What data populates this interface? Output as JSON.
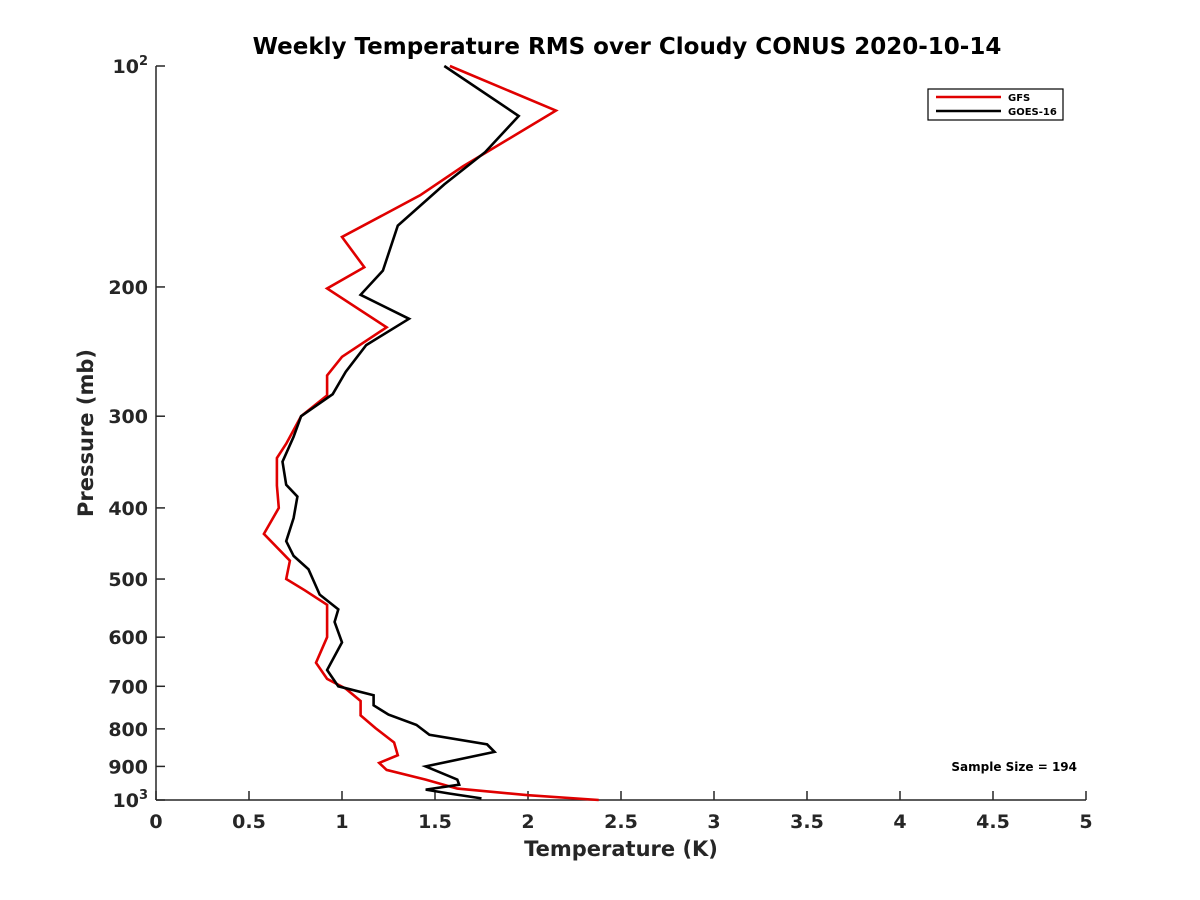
{
  "chart_data": {
    "type": "line",
    "title": "Weekly Temperature RMS over Cloudy CONUS 2020-10-14",
    "xlabel": "Temperature (K)",
    "ylabel": "Pressure (mb)",
    "xlim": [
      0,
      5
    ],
    "ylim": [
      100,
      1000
    ],
    "y_scale": "log",
    "y_reversed": true,
    "grid": false,
    "legend_position": "top-right",
    "x_ticks": [
      0,
      0.5,
      1,
      1.5,
      2,
      2.5,
      3,
      3.5,
      4,
      4.5,
      5
    ],
    "x_tick_labels": [
      "0",
      "0.5",
      "1",
      "1.5",
      "2",
      "2.5",
      "3",
      "3.5",
      "4",
      "4.5",
      "5"
    ],
    "y_ticks": [
      100,
      200,
      300,
      400,
      500,
      600,
      700,
      800,
      900,
      1000
    ],
    "y_tick_labels": [
      {
        "base": "10",
        "sup": "2"
      },
      {
        "base": "200",
        "sup": ""
      },
      {
        "base": "300",
        "sup": ""
      },
      {
        "base": "400",
        "sup": ""
      },
      {
        "base": "500",
        "sup": ""
      },
      {
        "base": "600",
        "sup": ""
      },
      {
        "base": "700",
        "sup": ""
      },
      {
        "base": "800",
        "sup": ""
      },
      {
        "base": "900",
        "sup": ""
      },
      {
        "base": "10",
        "sup": "3"
      }
    ],
    "annotation": "Sample Size = 194",
    "series": [
      {
        "name": "GFS",
        "color": "#e00000",
        "points": [
          [
            1.58,
            100
          ],
          [
            2.15,
            115
          ],
          [
            1.65,
            137
          ],
          [
            1.42,
            150
          ],
          [
            1.0,
            171
          ],
          [
            1.12,
            188
          ],
          [
            0.92,
            201
          ],
          [
            1.24,
            227
          ],
          [
            1.0,
            249
          ],
          [
            0.92,
            264
          ],
          [
            0.92,
            281
          ],
          [
            0.78,
            300
          ],
          [
            0.7,
            327
          ],
          [
            0.65,
            342
          ],
          [
            0.65,
            373
          ],
          [
            0.66,
            400
          ],
          [
            0.58,
            434
          ],
          [
            0.72,
            472
          ],
          [
            0.7,
            500
          ],
          [
            0.8,
            518
          ],
          [
            0.92,
            542
          ],
          [
            0.92,
            600
          ],
          [
            0.86,
            650
          ],
          [
            0.92,
            684
          ],
          [
            1.02,
            705
          ],
          [
            1.1,
            733
          ],
          [
            1.1,
            767
          ],
          [
            1.18,
            798
          ],
          [
            1.28,
            835
          ],
          [
            1.3,
            869
          ],
          [
            1.2,
            890
          ],
          [
            1.24,
            910
          ],
          [
            1.45,
            938
          ],
          [
            1.62,
            965
          ],
          [
            2.0,
            985
          ],
          [
            2.38,
            1000
          ]
        ]
      },
      {
        "name": "GOES-16",
        "color": "#000000",
        "points": [
          [
            1.55,
            100
          ],
          [
            1.95,
            117
          ],
          [
            1.77,
            131
          ],
          [
            1.55,
            145
          ],
          [
            1.3,
            165
          ],
          [
            1.22,
            190
          ],
          [
            1.1,
            205
          ],
          [
            1.36,
            221
          ],
          [
            1.13,
            240
          ],
          [
            1.02,
            261
          ],
          [
            0.95,
            280
          ],
          [
            0.78,
            300
          ],
          [
            0.74,
            320
          ],
          [
            0.68,
            346
          ],
          [
            0.7,
            372
          ],
          [
            0.76,
            386
          ],
          [
            0.74,
            413
          ],
          [
            0.7,
            444
          ],
          [
            0.74,
            465
          ],
          [
            0.82,
            485
          ],
          [
            0.88,
            525
          ],
          [
            0.98,
            550
          ],
          [
            0.96,
            572
          ],
          [
            1.0,
            610
          ],
          [
            0.92,
            665
          ],
          [
            0.98,
            700
          ],
          [
            1.17,
            720
          ],
          [
            1.17,
            743
          ],
          [
            1.25,
            765
          ],
          [
            1.4,
            790
          ],
          [
            1.47,
            815
          ],
          [
            1.78,
            840
          ],
          [
            1.82,
            860
          ],
          [
            1.45,
            900
          ],
          [
            1.62,
            938
          ],
          [
            1.63,
            953
          ],
          [
            1.45,
            968
          ],
          [
            1.58,
            980
          ],
          [
            1.75,
            995
          ]
        ]
      }
    ]
  }
}
